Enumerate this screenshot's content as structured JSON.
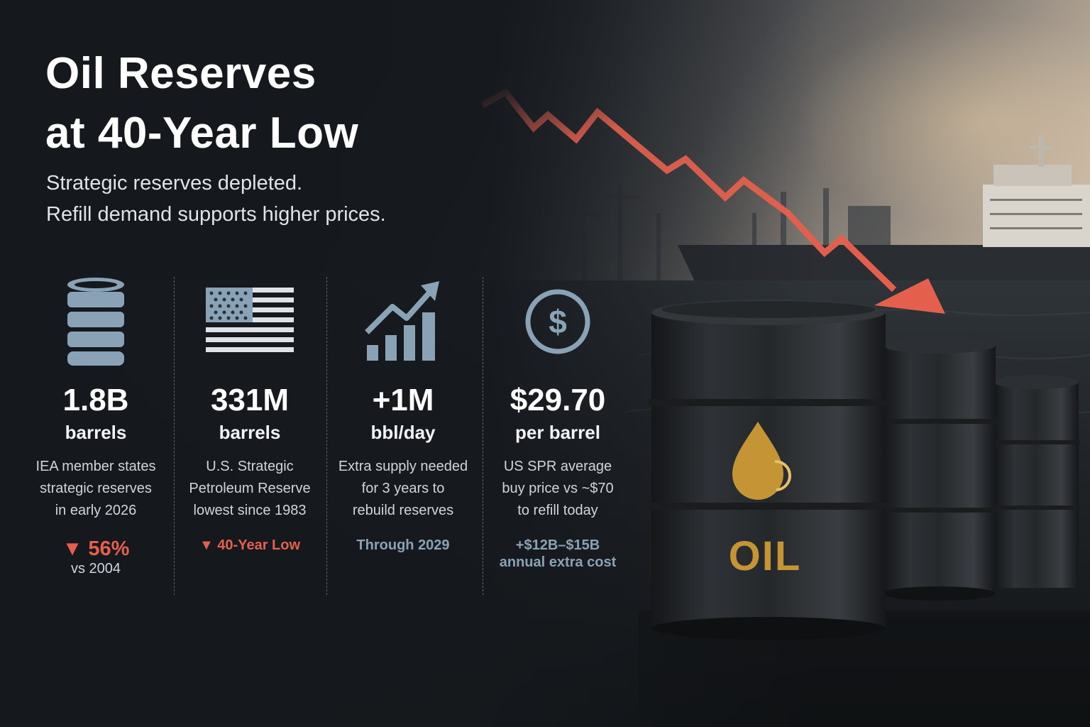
{
  "headline": {
    "line1": "Oil Reserves",
    "line2": "at 40-Year Low"
  },
  "subhead": {
    "line1": "Strategic reserves depleted.",
    "line2": "Refill demand supports higher prices."
  },
  "stats": [
    {
      "icon": "oil-barrel-icon",
      "value": "1.8B",
      "unit": "barrels",
      "desc": [
        "IEA member states",
        "strategic reserves",
        "in early 2026"
      ],
      "note": "▼ 56%",
      "note_sub": "vs 2004"
    },
    {
      "icon": "us-flag-icon",
      "value": "331M",
      "unit": "barrels",
      "desc": [
        "U.S. Strategic",
        "Petroleum Reserve",
        "lowest since 1983"
      ],
      "note": "▼ 40-Year Low"
    },
    {
      "icon": "growth-chart-icon",
      "value": "+1M",
      "unit": "bbl/day",
      "desc": [
        "Extra supply needed",
        "for 3 years to",
        "rebuild reserves"
      ],
      "note": "Through 2029"
    },
    {
      "icon": "dollar-coin-icon",
      "value": "$29.70",
      "unit": "per barrel",
      "desc": [
        "US SPR average",
        "buy price vs ~$70",
        "to refill today"
      ],
      "note": "+$12B–$15B",
      "note_sub": "annual extra cost"
    }
  ],
  "barrel_label": "OIL",
  "colors": {
    "accent_red": "#e4604d",
    "accent_blue": "#8aa2b5",
    "barrel_gold": "#c59434",
    "background": "#15191d"
  }
}
